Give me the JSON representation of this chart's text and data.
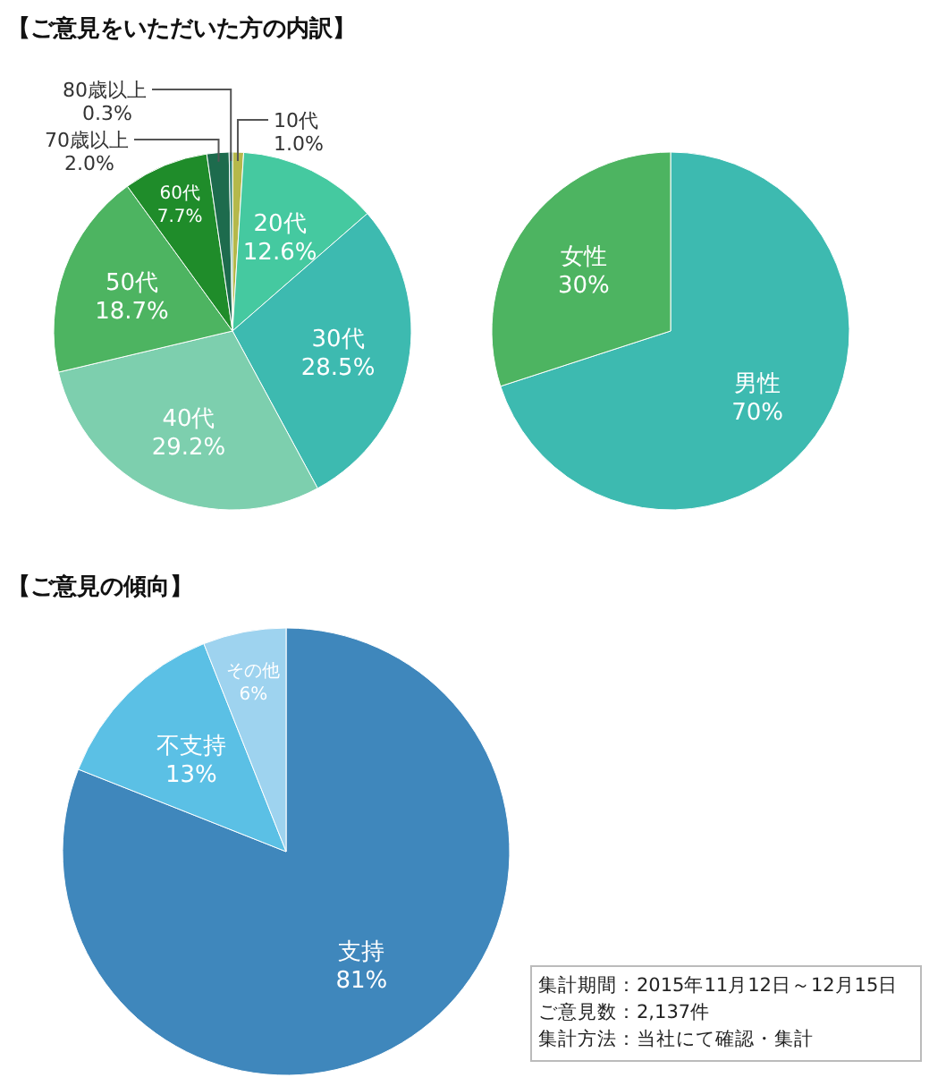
{
  "chart_data": [
    {
      "type": "pie",
      "title": "【ご意見をいただいた方の内訳】",
      "categories": [
        "10代",
        "20代",
        "30代",
        "40代",
        "50代",
        "60代",
        "70歳以上",
        "80歳以上"
      ],
      "values": [
        1.0,
        12.6,
        28.5,
        29.2,
        18.7,
        7.7,
        2.0,
        0.3
      ],
      "value_labels": [
        "1.0%",
        "12.6%",
        "28.5%",
        "29.2%",
        "18.7%",
        "7.7%",
        "2.0%",
        "0.3%"
      ],
      "colors": [
        "#b5b84a",
        "#45c9a0",
        "#3dbab0",
        "#7dcfae",
        "#4db461",
        "#1f8c2a",
        "#1d6b4d",
        "#2f7f74"
      ]
    },
    {
      "type": "pie",
      "categories": [
        "男性",
        "女性"
      ],
      "values": [
        70,
        30
      ],
      "value_labels": [
        "70%",
        "30%"
      ],
      "colors": [
        "#3dbab0",
        "#4db461"
      ]
    },
    {
      "type": "pie",
      "title": "【ご意見の傾向】",
      "categories": [
        "支持",
        "不支持",
        "その他"
      ],
      "values": [
        81,
        13,
        6
      ],
      "value_labels": [
        "81%",
        "13%",
        "6%"
      ],
      "colors": [
        "#3f87bc",
        "#5bc0e5",
        "#9ed3ef"
      ],
      "annotations": [
        "集計期間：2015年11月12日～12月15日",
        "ご意見数：2,137件",
        "集計方法：当社にて確認・集計"
      ]
    }
  ]
}
